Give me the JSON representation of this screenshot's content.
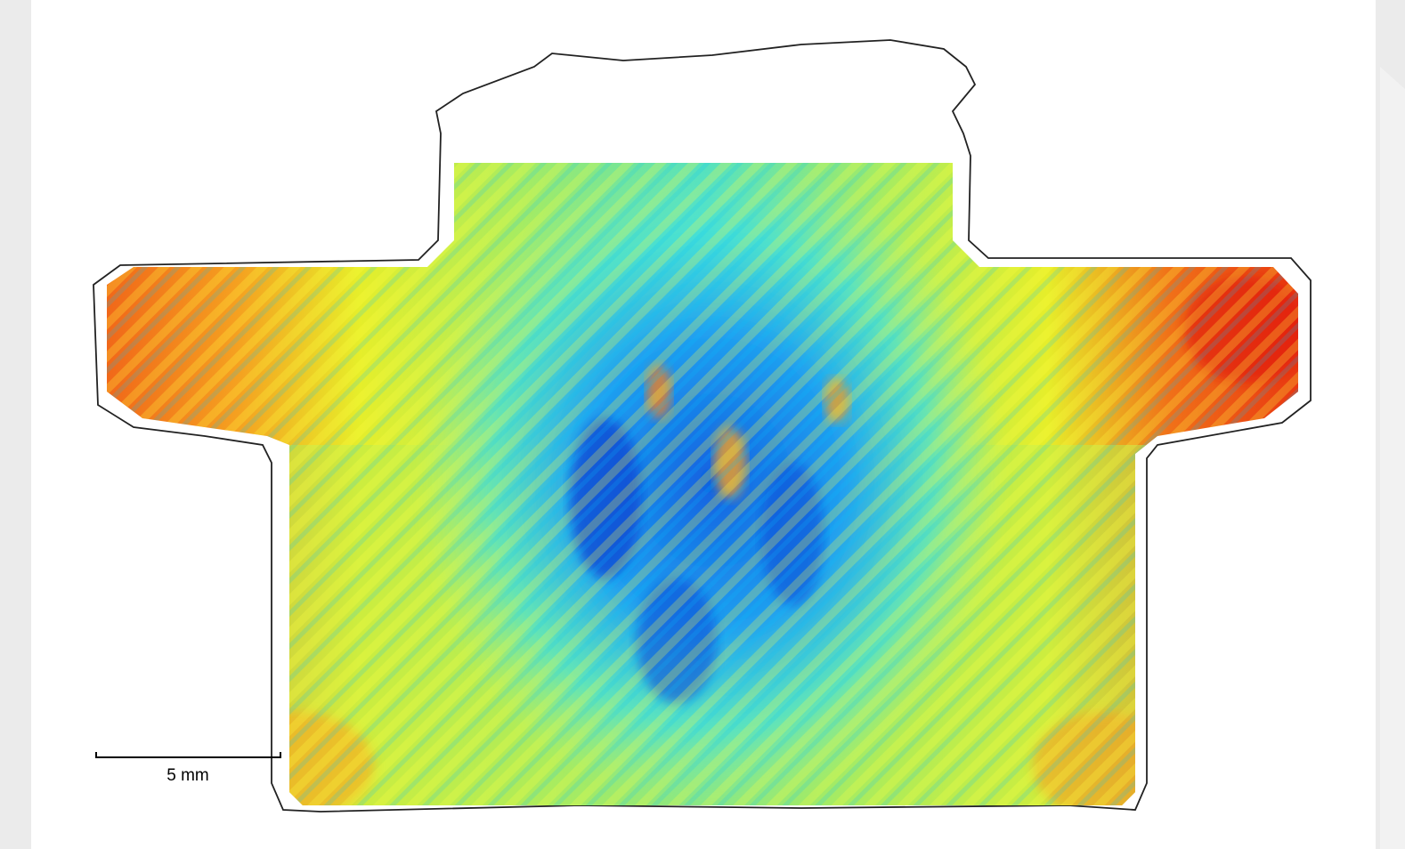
{
  "scale_bar": {
    "label": "5 mm"
  }
}
